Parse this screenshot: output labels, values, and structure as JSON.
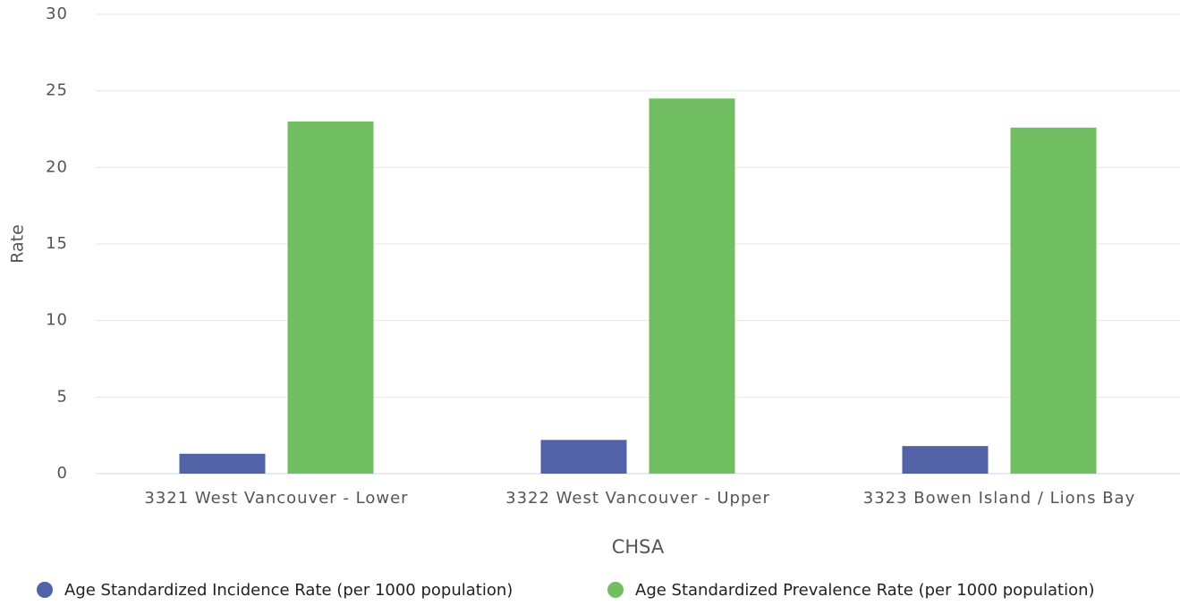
{
  "chart_data": {
    "type": "bar",
    "categories": [
      "3321 West Vancouver - Lower",
      "3322 West Vancouver - Upper",
      "3323 Bowen Island / Lions Bay"
    ],
    "series": [
      {
        "name": "Age Standardized Incidence Rate (per 1000 population)",
        "color": "#5262a6",
        "values": [
          1.3,
          2.2,
          1.8
        ]
      },
      {
        "name": "Age Standardized Prevalence Rate (per 1000 population)",
        "color": "#72bf63",
        "values": [
          23.0,
          24.5,
          22.6
        ]
      }
    ],
    "xlabel": "CHSA",
    "ylabel": "Rate",
    "ylim": [
      0,
      30
    ],
    "yticks": [
      0,
      5,
      10,
      15,
      20,
      25,
      30
    ],
    "grid": true
  }
}
